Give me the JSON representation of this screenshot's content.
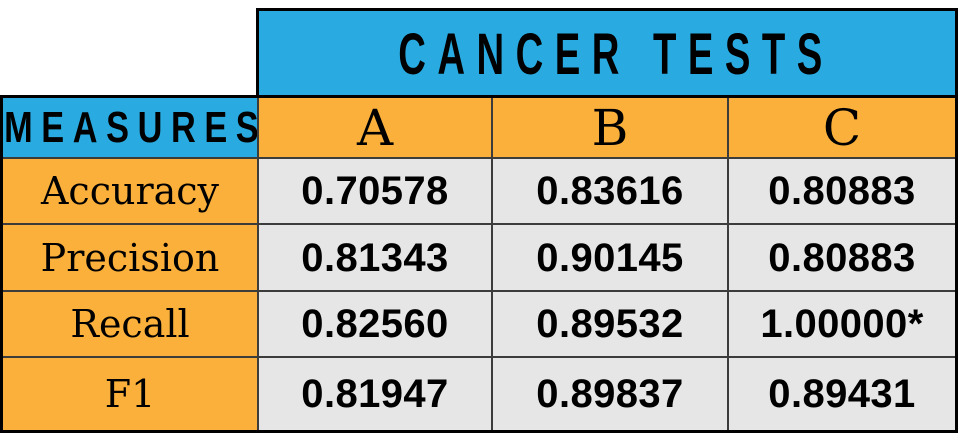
{
  "table": {
    "title": "CANCER TESTS",
    "corner_label": "MEASURES",
    "columns": [
      "A",
      "B",
      "C"
    ],
    "rows": [
      {
        "label": "Accuracy",
        "values": [
          "0.70578",
          "0.83616",
          "0.80883"
        ]
      },
      {
        "label": "Precision",
        "values": [
          "0.81343",
          "0.90145",
          "0.80883"
        ]
      },
      {
        "label": "Recall",
        "values": [
          "0.82560",
          "0.89532",
          "1.00000*"
        ]
      },
      {
        "label": "F1",
        "values": [
          "0.81947",
          "0.89837",
          "0.89431"
        ]
      }
    ],
    "colors": {
      "header_blue": "#29ABE2",
      "accent_orange": "#FBB03B",
      "cell_gray": "#E6E6E6",
      "border_black": "#000000",
      "grid_line": "#3C3C3C",
      "text": "#000000"
    }
  },
  "chart_data": {
    "type": "table",
    "title": "CANCER TESTS",
    "row_header_label": "MEASURES",
    "columns": [
      "A",
      "B",
      "C"
    ],
    "row_labels": [
      "Accuracy",
      "Precision",
      "Recall",
      "F1"
    ],
    "cell_values": [
      [
        "0.70578",
        "0.83616",
        "0.80883"
      ],
      [
        "0.81343",
        "0.90145",
        "0.80883"
      ],
      [
        "0.82560",
        "0.89532",
        "1.00000*"
      ],
      [
        "0.81947",
        "0.89837",
        "0.89431"
      ]
    ],
    "numeric_values": [
      [
        0.70578,
        0.83616,
        0.80883
      ],
      [
        0.81343,
        0.90145,
        0.80883
      ],
      [
        0.8256,
        0.89532,
        1.0
      ],
      [
        0.81947,
        0.89837,
        0.89431
      ]
    ],
    "annotations": [
      "Recall for test C is marked with an asterisk: 1.00000*"
    ]
  }
}
